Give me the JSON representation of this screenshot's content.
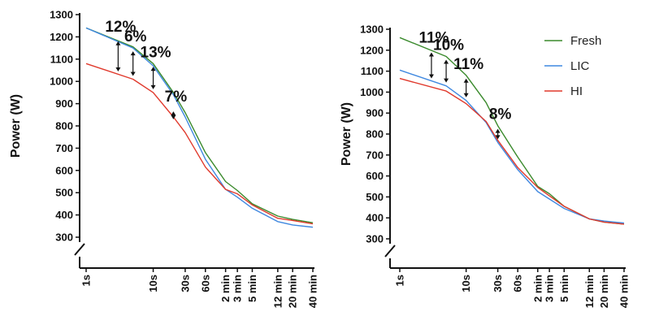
{
  "chart_data": [
    {
      "type": "line",
      "ylabel": "Power (W)",
      "xlabel": "",
      "x_tick_labels": [
        "1s",
        "10s",
        "30s",
        "60s",
        "2 min",
        "3 min",
        "5 min",
        "12 min",
        "20 min",
        "40 min"
      ],
      "x_tick_seconds": [
        1,
        10,
        30,
        60,
        120,
        180,
        300,
        720,
        1200,
        2400
      ],
      "x_scale": "log",
      "y_ticks": [
        300,
        400,
        500,
        600,
        700,
        800,
        900,
        1000,
        1100,
        1200,
        1300
      ],
      "ylim": [
        300,
        1300
      ],
      "y_axis_break": true,
      "grid": false,
      "legend": false,
      "series": [
        {
          "name": "Fresh",
          "color": "#3a8a2c",
          "x": [
            1,
            5,
            10,
            20,
            30,
            60,
            120,
            180,
            300,
            720,
            1200,
            2400
          ],
          "y": [
            1240,
            1155,
            1080,
            950,
            860,
            680,
            550,
            510,
            450,
            395,
            380,
            365
          ]
        },
        {
          "name": "LIC",
          "color": "#3f88e0",
          "x": [
            1,
            5,
            10,
            20,
            30,
            60,
            120,
            180,
            300,
            720,
            1200,
            2400
          ],
          "y": [
            1240,
            1150,
            1070,
            940,
            840,
            650,
            515,
            480,
            430,
            370,
            355,
            345
          ]
        },
        {
          "name": "HI",
          "color": "#e0392c",
          "x": [
            1,
            5,
            10,
            20,
            30,
            60,
            120,
            180,
            300,
            720,
            1200,
            2400
          ],
          "y": [
            1080,
            1010,
            950,
            840,
            770,
            615,
            515,
            495,
            445,
            385,
            375,
            360
          ]
        }
      ],
      "annotations": [
        {
          "text": "12%",
          "x": 3,
          "y_top": 1195,
          "y_bottom": 1030
        },
        {
          "text": "6%",
          "x": 5,
          "y_top": 1150,
          "y_bottom": 1010
        },
        {
          "text": "13%",
          "x": 10,
          "y_top": 1080,
          "y_bottom": 950
        },
        {
          "text": "7%",
          "x": 20,
          "y_top": 880,
          "y_bottom": 815
        }
      ]
    },
    {
      "type": "line",
      "ylabel": "Power (W)",
      "xlabel": "",
      "x_tick_labels": [
        "1s",
        "10s",
        "30s",
        "60s",
        "2 min",
        "3 min",
        "5 min",
        "12 min",
        "20 min",
        "40 min"
      ],
      "x_tick_seconds": [
        1,
        10,
        30,
        60,
        120,
        180,
        300,
        720,
        1200,
        2400
      ],
      "x_scale": "log",
      "y_ticks": [
        300,
        400,
        500,
        600,
        700,
        800,
        900,
        1000,
        1100,
        1200,
        1300
      ],
      "ylim": [
        300,
        1300
      ],
      "y_axis_break": true,
      "grid": false,
      "legend": true,
      "legend_position": "top-right",
      "series": [
        {
          "name": "Fresh",
          "color": "#3a8a2c",
          "x": [
            1,
            5,
            10,
            20,
            30,
            60,
            120,
            180,
            300,
            720,
            1200,
            2400
          ],
          "y": [
            1260,
            1170,
            1080,
            950,
            840,
            690,
            550,
            515,
            455,
            395,
            380,
            370
          ]
        },
        {
          "name": "LIC",
          "color": "#3f88e0",
          "x": [
            1,
            5,
            10,
            20,
            30,
            60,
            120,
            180,
            300,
            720,
            1200,
            2400
          ],
          "y": [
            1105,
            1030,
            960,
            855,
            760,
            630,
            525,
            490,
            445,
            395,
            385,
            375
          ]
        },
        {
          "name": "HI",
          "color": "#e0392c",
          "x": [
            1,
            5,
            10,
            20,
            30,
            60,
            120,
            180,
            300,
            720,
            1200,
            2400
          ],
          "y": [
            1065,
            1005,
            945,
            860,
            770,
            640,
            545,
            505,
            455,
            395,
            380,
            370
          ]
        }
      ],
      "annotations": [
        {
          "text": "11%",
          "x": 3,
          "y_top": 1205,
          "y_bottom": 1050
        },
        {
          "text": "10%",
          "x": 5,
          "y_top": 1170,
          "y_bottom": 1030
        },
        {
          "text": "11%",
          "x": 10,
          "y_top": 1080,
          "y_bottom": 960
        },
        {
          "text": "8%",
          "x": 30,
          "y_top": 840,
          "y_bottom": 760
        }
      ]
    }
  ]
}
